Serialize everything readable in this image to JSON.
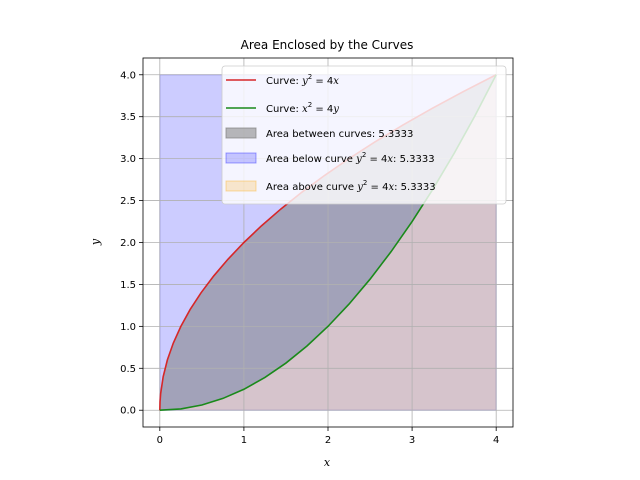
{
  "chart_data": {
    "type": "area",
    "title": "Area Enclosed by the Curves",
    "xlabel": "x",
    "ylabel": "y",
    "xlim": [
      -0.2,
      4.2
    ],
    "ylim": [
      -0.2,
      4.2
    ],
    "xticks": [
      0,
      1,
      2,
      3,
      4
    ],
    "yticks": [
      0.0,
      0.5,
      1.0,
      1.5,
      2.0,
      2.5,
      3.0,
      3.5,
      4.0
    ],
    "xtick_labels": [
      "0",
      "1",
      "2",
      "3",
      "4"
    ],
    "ytick_labels": [
      "0.0",
      "0.5",
      "1.0",
      "1.5",
      "2.0",
      "2.5",
      "3.0",
      "3.5",
      "4.0"
    ],
    "grid": true,
    "legend_position": "upper-right",
    "series": [
      {
        "name": "Curve: y² = 4x",
        "kind": "line",
        "color": "#d62728",
        "x": [
          0,
          0.0025,
          0.01,
          0.04,
          0.09,
          0.16,
          0.25,
          0.36,
          0.49,
          0.64,
          0.81,
          1.0,
          1.21,
          1.44,
          1.69,
          1.96,
          2.25,
          2.56,
          2.89,
          3.24,
          3.61,
          4.0
        ],
        "y": [
          0,
          0.1,
          0.2,
          0.4,
          0.6,
          0.8,
          1.0,
          1.2,
          1.4,
          1.6,
          1.8,
          2.0,
          2.2,
          2.4,
          2.6,
          2.8,
          3.0,
          3.2,
          3.4,
          3.6,
          3.8,
          4.0
        ]
      },
      {
        "name": "Curve: x² = 4y",
        "kind": "line",
        "color": "#1a8a1a",
        "x": [
          0,
          0.25,
          0.5,
          0.75,
          1.0,
          1.25,
          1.5,
          1.75,
          2.0,
          2.25,
          2.5,
          2.75,
          3.0,
          3.25,
          3.5,
          3.75,
          4.0
        ],
        "y": [
          0,
          0.015625,
          0.0625,
          0.140625,
          0.25,
          0.390625,
          0.5625,
          0.765625,
          1.0,
          1.265625,
          1.5625,
          1.890625,
          2.25,
          2.640625,
          3.0625,
          3.515625,
          4.0
        ]
      },
      {
        "name": "Area between curves: 5.3333",
        "kind": "fill",
        "color": "#808080",
        "opacity": 0.55,
        "area": 5.3333
      },
      {
        "name": "Area below curve y² = 4x: 5.3333",
        "kind": "fill",
        "color": "#0000ff",
        "opacity": 0.2,
        "area": 5.3333
      },
      {
        "name": "Area above curve y² = 4x: 5.3333",
        "kind": "fill",
        "color": "#ffa500",
        "opacity": 0.2,
        "area": 5.3333
      }
    ],
    "legend": [
      {
        "kind": "line",
        "color": "#d62728",
        "pre": "Curve: ",
        "var1": "y",
        "sup": "2",
        "eq": " = 4",
        "var2": "x",
        "post": ""
      },
      {
        "kind": "line",
        "color": "#1a8a1a",
        "pre": "Curve: ",
        "var1": "x",
        "sup": "2",
        "eq": " = 4",
        "var2": "y",
        "post": ""
      },
      {
        "kind": "patch",
        "color": "#808080",
        "opacity": 0.55,
        "plain": "Area between curves: 5.3333"
      },
      {
        "kind": "patch",
        "color": "#0000ff",
        "opacity": 0.2,
        "pre": "Area below curve ",
        "var1": "y",
        "sup": "2",
        "eq": " = 4",
        "var2": "x",
        "post": ": 5.3333"
      },
      {
        "kind": "patch",
        "color": "#ffa500",
        "opacity": 0.2,
        "pre": "Area above curve ",
        "var1": "y",
        "sup": "2",
        "eq": " = 4",
        "var2": "x",
        "post": ": 5.3333"
      }
    ]
  }
}
